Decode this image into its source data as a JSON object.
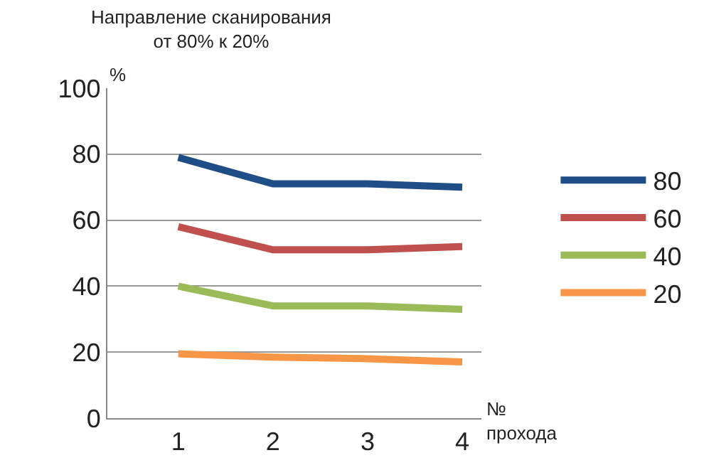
{
  "chart_data": {
    "type": "line",
    "title": "Направление сканирования\nот 80% к 20%",
    "ylabel": "%",
    "xlabel": "№\nпрохода",
    "categories": [
      "1",
      "2",
      "3",
      "4"
    ],
    "series": [
      {
        "name": "80",
        "color": "#1f4e87",
        "values": [
          79,
          71,
          71,
          70
        ]
      },
      {
        "name": "60",
        "color": "#c0504d",
        "values": [
          58,
          51,
          51,
          52
        ]
      },
      {
        "name": "40",
        "color": "#9bbb59",
        "values": [
          40,
          34,
          34,
          33
        ]
      },
      {
        "name": "20",
        "color": "#f79646",
        "values": [
          19.5,
          18.5,
          18,
          17
        ]
      }
    ],
    "ylim": [
      0,
      100
    ],
    "yticks": [
      0,
      20,
      40,
      60,
      80,
      100
    ],
    "grid": "y",
    "legend": "right",
    "marker": "none",
    "line_style": "solid"
  }
}
